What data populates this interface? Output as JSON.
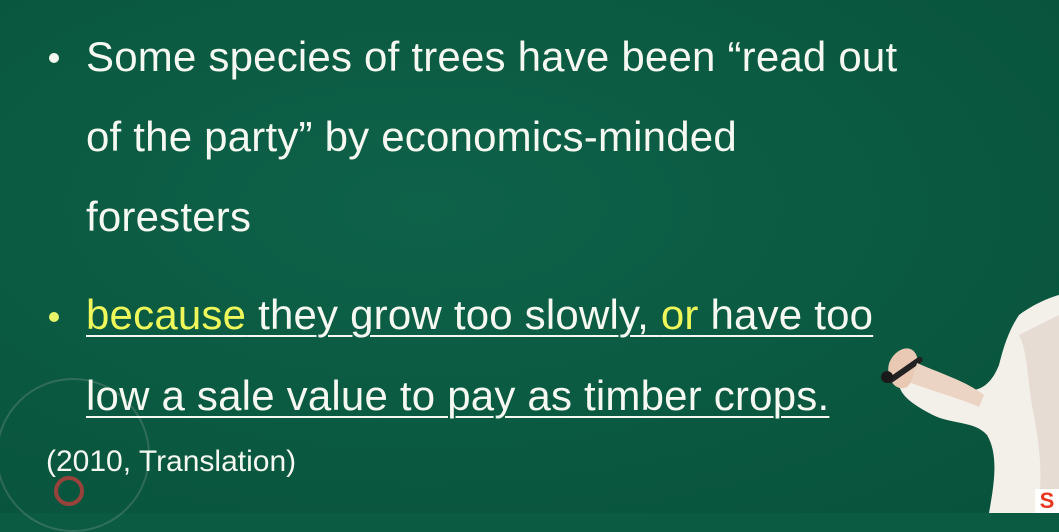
{
  "bullet1": {
    "line1": "Some species of trees have been  “read out",
    "line2": "of the party”  by economics-minded",
    "line3": "foresters"
  },
  "bullet2": {
    "because": "because",
    "part1": " they grow too slowly, ",
    "or": "or",
    "part2": " have too",
    "line2": "low a sale value to pay as timber crops."
  },
  "source": "(2010, Translation)",
  "colors": {
    "board": "#0b5b42",
    "text": "#f6f8f2",
    "highlight": "#eef85a"
  }
}
